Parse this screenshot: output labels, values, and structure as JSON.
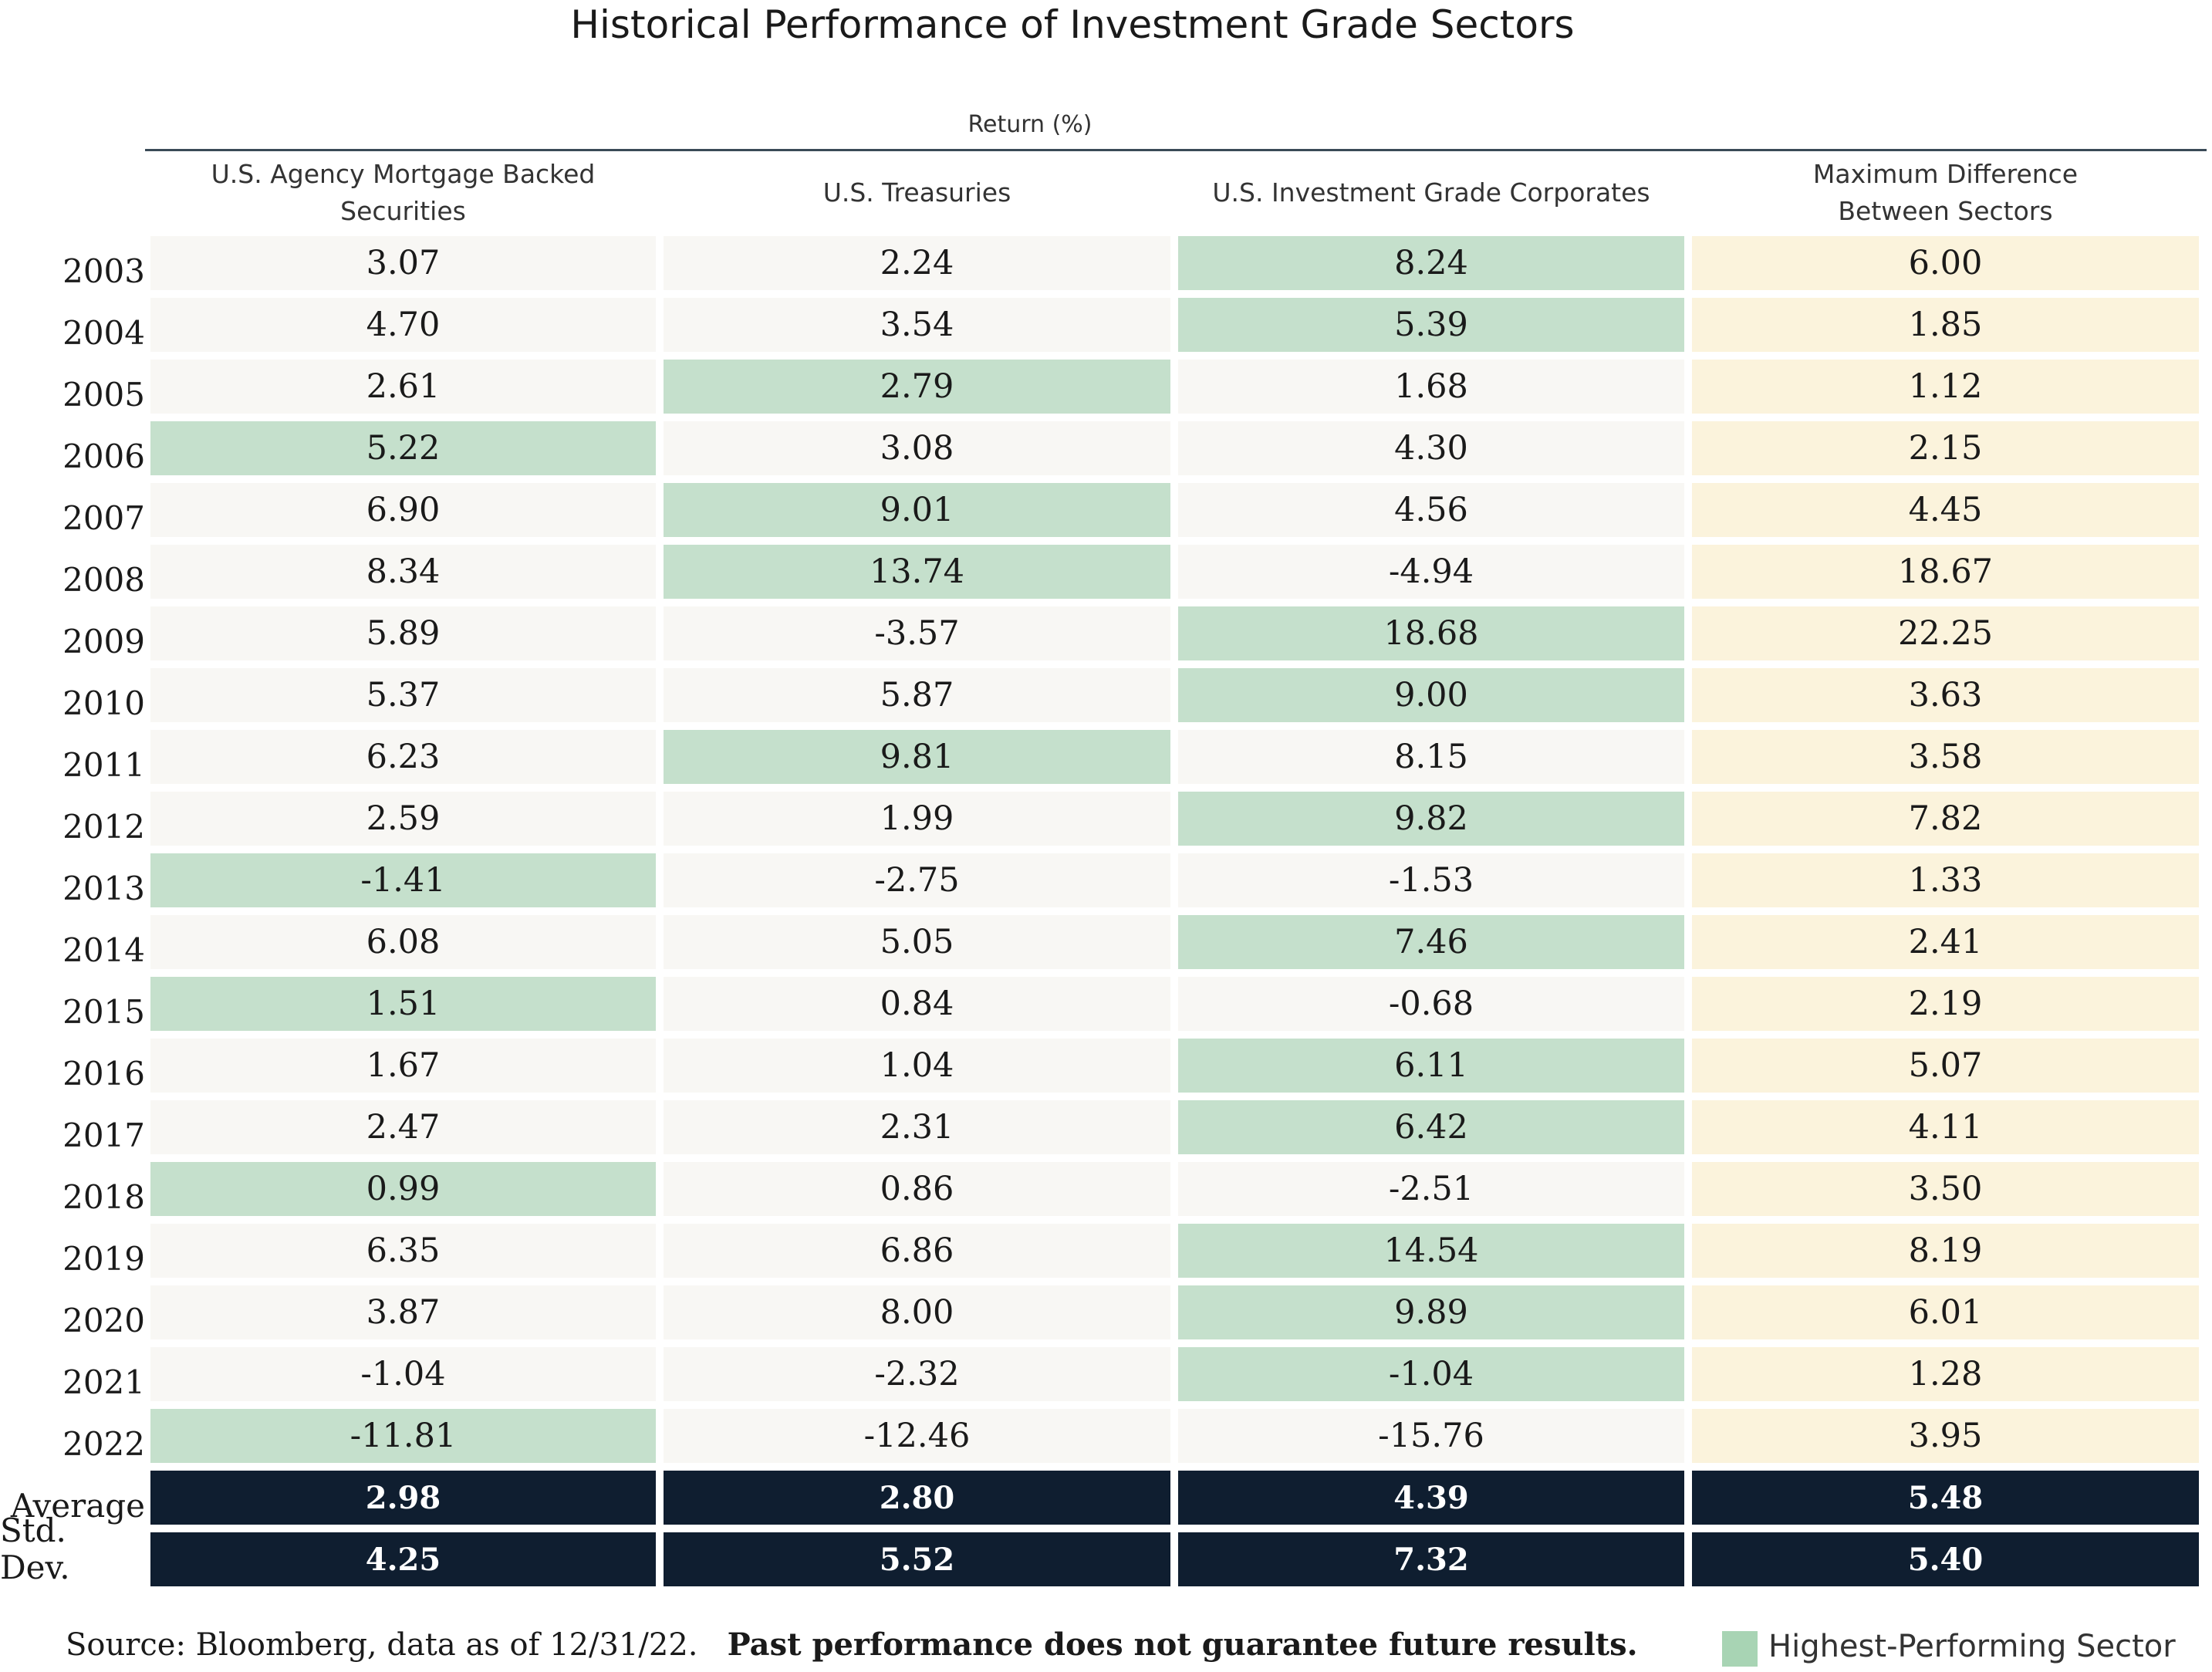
{
  "chart_data": {
    "type": "table",
    "title": "Historical Performance of Investment Grade Sectors",
    "header_group": "Return (%)",
    "columns": [
      "U.S. Agency Mortgage Backed Securities",
      "U.S. Treasuries",
      "U.S. Investment Grade Corporates",
      "Maximum Difference Between Sectors"
    ],
    "rows": [
      {
        "label": "2003",
        "values": [
          "3.07",
          "2.24",
          "8.24",
          "6.00"
        ],
        "highest": 2
      },
      {
        "label": "2004",
        "values": [
          "4.70",
          "3.54",
          "5.39",
          "1.85"
        ],
        "highest": 2
      },
      {
        "label": "2005",
        "values": [
          "2.61",
          "2.79",
          "1.68",
          "1.12"
        ],
        "highest": 1
      },
      {
        "label": "2006",
        "values": [
          "5.22",
          "3.08",
          "4.30",
          "2.15"
        ],
        "highest": 0
      },
      {
        "label": "2007",
        "values": [
          "6.90",
          "9.01",
          "4.56",
          "4.45"
        ],
        "highest": 1
      },
      {
        "label": "2008",
        "values": [
          "8.34",
          "13.74",
          "-4.94",
          "18.67"
        ],
        "highest": 1
      },
      {
        "label": "2009",
        "values": [
          "5.89",
          "-3.57",
          "18.68",
          "22.25"
        ],
        "highest": 2
      },
      {
        "label": "2010",
        "values": [
          "5.37",
          "5.87",
          "9.00",
          "3.63"
        ],
        "highest": 2
      },
      {
        "label": "2011",
        "values": [
          "6.23",
          "9.81",
          "8.15",
          "3.58"
        ],
        "highest": 1
      },
      {
        "label": "2012",
        "values": [
          "2.59",
          "1.99",
          "9.82",
          "7.82"
        ],
        "highest": 2
      },
      {
        "label": "2013",
        "values": [
          "-1.41",
          "-2.75",
          "-1.53",
          "1.33"
        ],
        "highest": 0
      },
      {
        "label": "2014",
        "values": [
          "6.08",
          "5.05",
          "7.46",
          "2.41"
        ],
        "highest": 2
      },
      {
        "label": "2015",
        "values": [
          "1.51",
          "0.84",
          "-0.68",
          "2.19"
        ],
        "highest": 0
      },
      {
        "label": "2016",
        "values": [
          "1.67",
          "1.04",
          "6.11",
          "5.07"
        ],
        "highest": 2
      },
      {
        "label": "2017",
        "values": [
          "2.47",
          "2.31",
          "6.42",
          "4.11"
        ],
        "highest": 2
      },
      {
        "label": "2018",
        "values": [
          "0.99",
          "0.86",
          "-2.51",
          "3.50"
        ],
        "highest": 0
      },
      {
        "label": "2019",
        "values": [
          "6.35",
          "6.86",
          "14.54",
          "8.19"
        ],
        "highest": 2
      },
      {
        "label": "2020",
        "values": [
          "3.87",
          "8.00",
          "9.89",
          "6.01"
        ],
        "highest": 2
      },
      {
        "label": "2021",
        "values": [
          "-1.04",
          "-2.32",
          "-1.04",
          "1.28"
        ],
        "highest": 2
      },
      {
        "label": "2022",
        "values": [
          "-11.81",
          "-12.46",
          "-15.76",
          "3.95"
        ],
        "highest": 0
      }
    ],
    "summary_rows": [
      {
        "label": "Average",
        "values": [
          "2.98",
          "2.80",
          "4.39",
          "5.48"
        ]
      },
      {
        "label": "Std. Dev.",
        "values": [
          "4.25",
          "5.52",
          "7.32",
          "5.40"
        ]
      }
    ],
    "legend": [
      {
        "label": "Highest-Performing Sector",
        "color": "#a8d4b4"
      }
    ]
  },
  "footer": {
    "source": "Source: Bloomberg, data as of 12/31/22.",
    "disclaimer": "Past performance does not guarantee future results."
  },
  "colors": {
    "highest": "#c5e0cc",
    "plain": "#f8f7f4",
    "difference": "#fbf3dc",
    "summary": "#0f1e30"
  }
}
